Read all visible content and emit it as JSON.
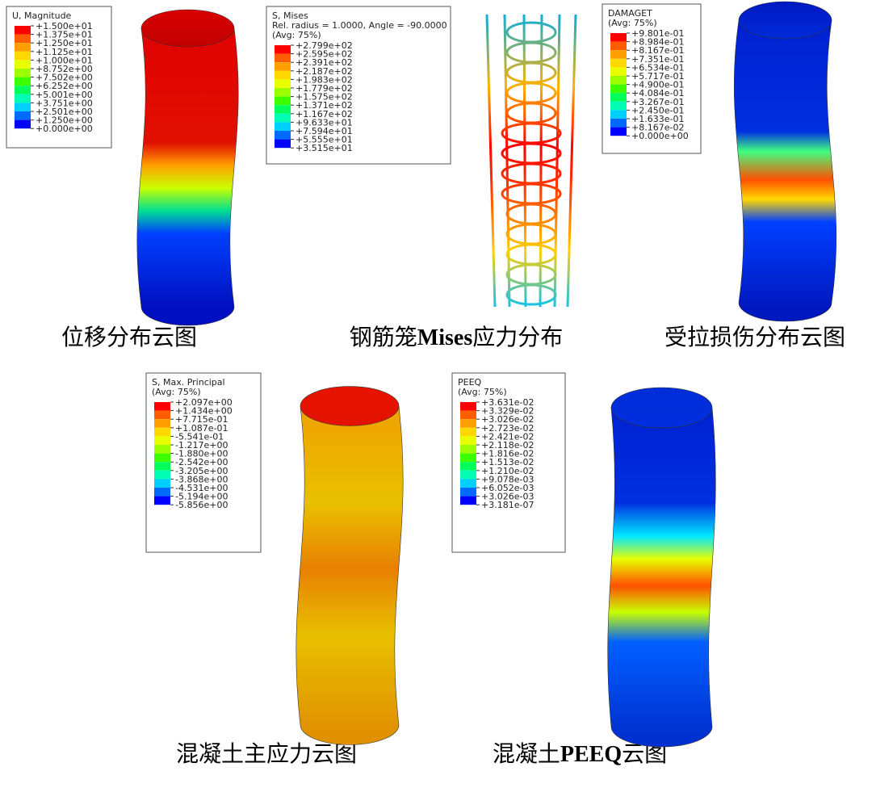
{
  "panels": [
    {
      "legend": {
        "title": [
          "U, Magnitude"
        ],
        "labels": [
          "+1.500e+01",
          "+1.375e+01",
          "+1.250e+01",
          "+1.125e+01",
          "+1.000e+01",
          "+8.752e+00",
          "+7.502e+00",
          "+6.252e+00",
          "+5.001e+00",
          "+3.751e+00",
          "+2.501e+00",
          "+1.250e+00",
          "+0.000e+00"
        ]
      },
      "caption": [
        {
          "text": "位移分布云图"
        }
      ]
    },
    {
      "legend": {
        "title": [
          "S, Mises",
          "Rel. radius = 1.0000, Angle = -90.0000",
          "(Avg: 75%)"
        ],
        "labels": [
          "+2.799e+02",
          "+2.595e+02",
          "+2.391e+02",
          "+2.187e+02",
          "+1.983e+02",
          "+1.779e+02",
          "+1.575e+02",
          "+1.371e+02",
          "+1.167e+02",
          "+9.633e+01",
          "+7.594e+01",
          "+5.555e+01",
          "+3.515e+01"
        ]
      },
      "caption": [
        {
          "text": "钢筋笼"
        },
        {
          "text": "Mises",
          "bold": true
        },
        {
          "text": "应力分布"
        }
      ]
    },
    {
      "legend": {
        "title": [
          "DAMAGET",
          "(Avg: 75%)"
        ],
        "labels": [
          "+9.801e-01",
          "+8.984e-01",
          "+8.167e-01",
          "+7.351e-01",
          "+6.534e-01",
          "+5.717e-01",
          "+4.900e-01",
          "+4.084e-01",
          "+3.267e-01",
          "+2.450e-01",
          "+1.633e-01",
          "+8.167e-02",
          "+0.000e+00"
        ]
      },
      "caption": [
        {
          "text": "受拉损伤分布云图"
        }
      ]
    },
    {
      "legend": {
        "title": [
          "S, Max. Principal",
          "(Avg: 75%)"
        ],
        "labels": [
          "+2.097e+00",
          "+1.434e+00",
          "+7.715e-01",
          "+1.087e-01",
          "-5.541e-01",
          "-1.217e+00",
          "-1.880e+00",
          "-2.542e+00",
          "-3.205e+00",
          "-3.868e+00",
          "-4.531e+00",
          "-5.194e+00",
          "-5.856e+00"
        ]
      },
      "caption": [
        {
          "text": "混凝土主应力云图"
        }
      ]
    },
    {
      "legend": {
        "title": [
          "PEEQ",
          "(Avg: 75%)"
        ],
        "labels": [
          "+3.631e-02",
          "+3.329e-02",
          "+3.026e-02",
          "+2.723e-02",
          "+2.421e-02",
          "+2.118e-02",
          "+1.816e-02",
          "+1.513e-02",
          "+1.210e-02",
          "+9.078e-03",
          "+6.052e-03",
          "+3.026e-03",
          "+3.181e-07"
        ]
      },
      "caption": [
        {
          "text": "混凝土"
        },
        {
          "text": "PEEQ",
          "bold": true
        },
        {
          "text": "云图"
        }
      ]
    }
  ]
}
